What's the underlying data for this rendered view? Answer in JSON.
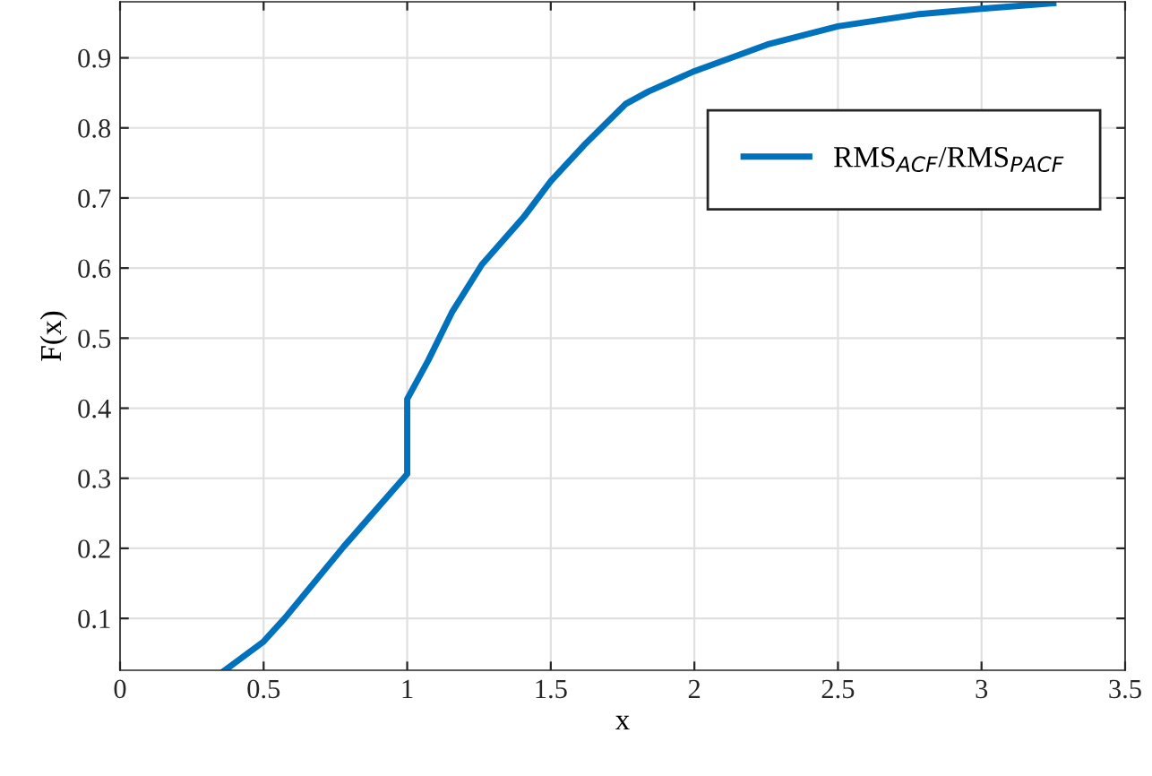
{
  "chart_data": {
    "type": "line",
    "xlabel": "x",
    "ylabel": "F(x)",
    "series": [
      {
        "name": "RMS$_{ACF}$/RMS$_{PACF}$",
        "color": "#0072bd",
        "x": [
          0.365,
          0.5,
          0.573,
          0.78,
          1.0,
          1.0,
          1.073,
          1.156,
          1.26,
          1.406,
          1.5,
          1.615,
          1.76,
          1.84,
          2.0,
          2.254,
          2.5,
          2.775,
          3.0,
          3.25
        ],
        "values": [
          0.026,
          0.067,
          0.1,
          0.203,
          0.306,
          0.413,
          0.468,
          0.537,
          0.605,
          0.673,
          0.724,
          0.775,
          0.834,
          0.852,
          0.881,
          0.919,
          0.945,
          0.962,
          0.97,
          0.978
        ]
      }
    ],
    "xlim": [
      0,
      3.5
    ],
    "ylim": [
      0.026,
      0.98
    ],
    "xticks": [
      0,
      0.5,
      1,
      1.5,
      2,
      2.5,
      3,
      3.5
    ],
    "yticks": [
      0.1,
      0.2,
      0.3,
      0.4,
      0.5,
      0.6,
      0.7,
      0.8,
      0.9
    ],
    "grid": true,
    "legend": "top right",
    "marker": "none",
    "line_style": "solid"
  }
}
